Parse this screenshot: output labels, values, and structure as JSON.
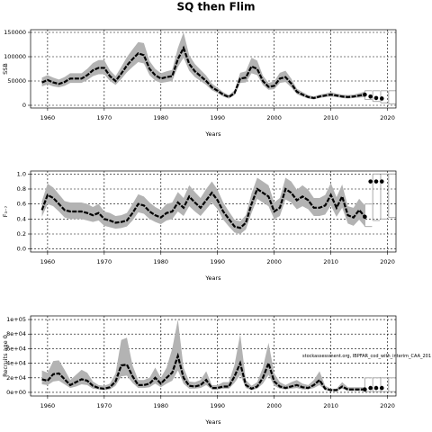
{
  "title": "SQ then Flim",
  "chart_data": [
    {
      "type": "line",
      "ylabel": "SSB",
      "xlabel": "Years",
      "grid": true,
      "color": "#000000",
      "band_color": "#b3b3b3",
      "xlim": [
        1957,
        2021.5
      ],
      "xticks": [
        1960,
        1970,
        1980,
        1990,
        2000,
        2010,
        2020
      ],
      "ylim": [
        -5556,
        155556
      ],
      "yticks": [
        0,
        50000,
        100000,
        150000
      ],
      "x": [
        1959,
        1960,
        1961,
        1962,
        1963,
        1964,
        1965,
        1966,
        1967,
        1968,
        1969,
        1970,
        1971,
        1972,
        1973,
        1974,
        1975,
        1976,
        1977,
        1978,
        1979,
        1980,
        1981,
        1982,
        1983,
        1984,
        1985,
        1986,
        1987,
        1988,
        1989,
        1990,
        1991,
        1992,
        1993,
        1994,
        1995,
        1996,
        1997,
        1998,
        1999,
        2000,
        2001,
        2002,
        2003,
        2004,
        2005,
        2006,
        2007,
        2008,
        2009,
        2010,
        2011,
        2012,
        2013,
        2014,
        2015,
        2016
      ],
      "values": [
        47000,
        52000,
        47000,
        44000,
        48000,
        55000,
        55000,
        55000,
        62000,
        72000,
        77000,
        77000,
        60000,
        50000,
        65000,
        82000,
        95000,
        107000,
        103000,
        75000,
        62000,
        55000,
        58000,
        60000,
        95000,
        118000,
        85000,
        70000,
        60000,
        50000,
        37000,
        30000,
        22000,
        17000,
        25000,
        55000,
        57000,
        80000,
        75000,
        50000,
        38000,
        40000,
        55000,
        58000,
        45000,
        28000,
        22000,
        17000,
        15000,
        18000,
        20000,
        22000,
        20000,
        18000,
        17000,
        18000,
        20000,
        22000
      ],
      "lower": [
        39000,
        43000,
        39000,
        37000,
        40000,
        46000,
        46000,
        46000,
        52000,
        60000,
        64000,
        64000,
        50000,
        42000,
        54000,
        68000,
        79000,
        89000,
        86000,
        62000,
        51000,
        46000,
        48000,
        50000,
        79000,
        98000,
        71000,
        58000,
        50000,
        42000,
        31000,
        25000,
        18000,
        14000,
        21000,
        46000,
        47000,
        66000,
        62000,
        42000,
        32000,
        33000,
        46000,
        48000,
        37000,
        23000,
        18000,
        14000,
        12000,
        15000,
        17000,
        18000,
        17000,
        15000,
        14000,
        15000,
        16000,
        17000
      ],
      "upper": [
        57000,
        62000,
        57000,
        53000,
        58000,
        66000,
        66000,
        66000,
        75000,
        87000,
        93000,
        93000,
        72000,
        60000,
        79000,
        99000,
        115000,
        130000,
        128000,
        91000,
        75000,
        66000,
        70000,
        73000,
        118000,
        150000,
        103000,
        85000,
        73000,
        61000,
        45000,
        36000,
        27000,
        21000,
        31000,
        67000,
        70000,
        98000,
        92000,
        61000,
        46000,
        49000,
        67000,
        71000,
        55000,
        34000,
        27000,
        21000,
        18000,
        22000,
        24000,
        27000,
        24000,
        22000,
        21000,
        22000,
        25000,
        28000
      ],
      "forecast": {
        "x": [
          2016,
          2017,
          2018,
          2019
        ],
        "values": [
          22000,
          18000,
          15000,
          14000
        ],
        "lower": [
          12000,
          8000,
          5000,
          3000
        ],
        "upper": [
          30000,
          30000,
          30000,
          30000
        ]
      }
    },
    {
      "type": "line",
      "ylabel": "F₃₋₇",
      "xlabel": "Years",
      "grid": true,
      "color": "#000000",
      "band_color": "#b3b3b3",
      "xlim": [
        1957,
        2021.5
      ],
      "xticks": [
        1960,
        1970,
        1980,
        1990,
        2000,
        2010,
        2020
      ],
      "ylim": [
        -0.04,
        1.04
      ],
      "yticks": [
        {
          "value": 0,
          "label": "0.0"
        },
        0.2,
        0.4,
        0.6,
        0.8,
        {
          "value": 1,
          "label": "1.0"
        }
      ],
      "x": [
        1959,
        1960,
        1961,
        1962,
        1963,
        1964,
        1965,
        1966,
        1967,
        1968,
        1969,
        1970,
        1971,
        1972,
        1973,
        1974,
        1975,
        1976,
        1977,
        1978,
        1979,
        1980,
        1981,
        1982,
        1983,
        1984,
        1985,
        1986,
        1987,
        1988,
        1989,
        1990,
        1991,
        1992,
        1993,
        1994,
        1995,
        1996,
        1997,
        1998,
        1999,
        2000,
        2001,
        2002,
        2003,
        2004,
        2005,
        2006,
        2007,
        2008,
        2009,
        2010,
        2011,
        2012,
        2013,
        2014,
        2015,
        2016
      ],
      "values": [
        0.52,
        0.72,
        0.68,
        0.6,
        0.52,
        0.5,
        0.5,
        0.5,
        0.48,
        0.45,
        0.48,
        0.4,
        0.38,
        0.35,
        0.36,
        0.38,
        0.48,
        0.6,
        0.58,
        0.5,
        0.45,
        0.42,
        0.48,
        0.5,
        0.62,
        0.55,
        0.7,
        0.62,
        0.55,
        0.65,
        0.75,
        0.65,
        0.5,
        0.4,
        0.3,
        0.28,
        0.35,
        0.6,
        0.8,
        0.75,
        0.7,
        0.5,
        0.55,
        0.8,
        0.75,
        0.65,
        0.7,
        0.65,
        0.55,
        0.55,
        0.58,
        0.72,
        0.55,
        0.7,
        0.45,
        0.42,
        0.52,
        0.43
      ],
      "lower": [
        0.43,
        0.6,
        0.57,
        0.5,
        0.42,
        0.4,
        0.4,
        0.4,
        0.38,
        0.36,
        0.38,
        0.31,
        0.29,
        0.27,
        0.28,
        0.3,
        0.38,
        0.49,
        0.47,
        0.4,
        0.36,
        0.33,
        0.38,
        0.4,
        0.5,
        0.44,
        0.57,
        0.5,
        0.44,
        0.53,
        0.62,
        0.53,
        0.39,
        0.3,
        0.22,
        0.2,
        0.26,
        0.48,
        0.67,
        0.62,
        0.57,
        0.4,
        0.44,
        0.66,
        0.62,
        0.53,
        0.57,
        0.53,
        0.44,
        0.44,
        0.46,
        0.58,
        0.43,
        0.55,
        0.34,
        0.31,
        0.39,
        0.3
      ],
      "upper": [
        0.64,
        0.87,
        0.82,
        0.73,
        0.64,
        0.62,
        0.62,
        0.62,
        0.6,
        0.56,
        0.6,
        0.5,
        0.48,
        0.44,
        0.45,
        0.48,
        0.6,
        0.73,
        0.7,
        0.62,
        0.56,
        0.52,
        0.6,
        0.62,
        0.76,
        0.68,
        0.85,
        0.76,
        0.68,
        0.8,
        0.9,
        0.79,
        0.62,
        0.5,
        0.39,
        0.37,
        0.45,
        0.74,
        0.95,
        0.9,
        0.85,
        0.62,
        0.68,
        0.95,
        0.9,
        0.79,
        0.85,
        0.79,
        0.68,
        0.68,
        0.72,
        0.88,
        0.69,
        0.86,
        0.57,
        0.55,
        0.67,
        0.58
      ],
      "forecast": {
        "x": [
          2016,
          2017,
          2018,
          2019
        ],
        "values": [
          0.43,
          0.9,
          0.9,
          0.9
        ],
        "lower": [
          0.3,
          0.38,
          0.4,
          0.42
        ],
        "upper": [
          0.6,
          1,
          1,
          1
        ]
      }
    },
    {
      "type": "line",
      "ylabel": "Recruits age 0",
      "xlabel": "Years",
      "grid": true,
      "color": "#000000",
      "band_color": "#b3b3b3",
      "annotation": "stockassessment.org, IBPFAR_cod_with_interim_CAA_201",
      "xlim": [
        1957,
        2021.5
      ],
      "xticks": [
        1960,
        1970,
        1980,
        1990,
        2000,
        2010,
        2020
      ],
      "ylim": [
        -5000,
        105000
      ],
      "yticks": [
        {
          "value": 0,
          "label": "0e+00"
        },
        {
          "value": 20000,
          "label": "2e+04"
        },
        {
          "value": 40000,
          "label": "4e+04"
        },
        {
          "value": 60000,
          "label": "6e+04"
        },
        {
          "value": 80000,
          "label": "8e+04"
        },
        {
          "value": 100000,
          "label": "1e+05"
        }
      ],
      "x": [
        1959,
        1960,
        1961,
        1962,
        1963,
        1964,
        1965,
        1966,
        1967,
        1968,
        1969,
        1970,
        1971,
        1972,
        1973,
        1974,
        1975,
        1976,
        1977,
        1978,
        1979,
        1980,
        1981,
        1982,
        1983,
        1984,
        1985,
        1986,
        1987,
        1988,
        1989,
        1990,
        1991,
        1992,
        1993,
        1994,
        1995,
        1996,
        1997,
        1998,
        1999,
        2000,
        2001,
        2002,
        2003,
        2004,
        2005,
        2006,
        2007,
        2008,
        2009,
        2010,
        2011,
        2012,
        2013,
        2014,
        2015,
        2016
      ],
      "values": [
        18000,
        16000,
        25000,
        26000,
        18000,
        10000,
        14000,
        18000,
        16000,
        9000,
        6000,
        5000,
        7000,
        15000,
        37000,
        38000,
        22000,
        10000,
        10000,
        12000,
        20000,
        12000,
        20000,
        27000,
        50000,
        20000,
        9000,
        8000,
        10000,
        17000,
        6000,
        6000,
        8000,
        8000,
        22000,
        40000,
        10000,
        5000,
        8000,
        20000,
        40000,
        15000,
        8000,
        6000,
        8000,
        10000,
        7000,
        6000,
        10000,
        17000,
        5000,
        3000,
        3000,
        8000,
        4000,
        4000,
        4000,
        4000
      ],
      "lower": [
        11000,
        10000,
        15000,
        16000,
        11000,
        6000,
        8000,
        11000,
        10000,
        5000,
        4000,
        3000,
        4000,
        9000,
        22000,
        23000,
        13000,
        6000,
        6000,
        7000,
        12000,
        7000,
        12000,
        16000,
        30000,
        12000,
        5000,
        5000,
        6000,
        10000,
        4000,
        4000,
        5000,
        5000,
        13000,
        24000,
        6000,
        3000,
        5000,
        12000,
        24000,
        9000,
        5000,
        4000,
        5000,
        6000,
        4000,
        4000,
        6000,
        10000,
        3000,
        2000,
        2000,
        5000,
        2000,
        2000,
        2000,
        2000
      ],
      "upper": [
        30000,
        27000,
        43000,
        44000,
        31000,
        17000,
        24000,
        31000,
        27000,
        15000,
        10000,
        9000,
        12000,
        26000,
        72000,
        75000,
        37000,
        17000,
        17000,
        20000,
        34000,
        20000,
        34000,
        60000,
        100000,
        34000,
        15000,
        14000,
        17000,
        29000,
        10000,
        10000,
        14000,
        14000,
        38000,
        80000,
        17000,
        9000,
        14000,
        34000,
        68000,
        26000,
        14000,
        10000,
        14000,
        17000,
        12000,
        10000,
        17000,
        29000,
        9000,
        5000,
        5000,
        14000,
        7000,
        7000,
        7000,
        7000
      ],
      "forecast": {
        "x": [
          2016,
          2017,
          2018,
          2019
        ],
        "values": [
          4000,
          6000,
          6000,
          6000
        ],
        "lower": [
          1000,
          1000,
          1000,
          1000
        ],
        "upper": [
          20000,
          20000,
          20000,
          20000
        ]
      }
    }
  ]
}
